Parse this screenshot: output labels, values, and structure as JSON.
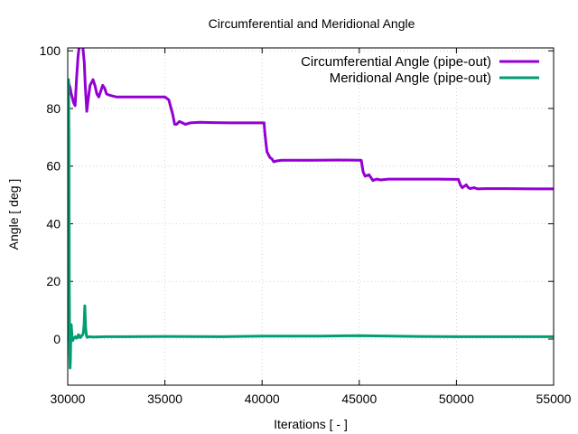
{
  "chart_data": {
    "type": "line",
    "title": "Circumferential and Meridional Angle",
    "xlabel": "Iterations [ - ]",
    "ylabel": "Angle [ deg ]",
    "xlim": [
      30000,
      55000
    ],
    "ylim": [
      -16,
      101
    ],
    "x_ticks": [
      30000,
      35000,
      40000,
      45000,
      50000,
      55000
    ],
    "y_ticks": [
      0,
      20,
      40,
      60,
      80,
      100
    ],
    "grid": true,
    "legend_position": "top-right",
    "series": [
      {
        "name": "Circumferential Angle (pipe-out)",
        "color": "#9400d3",
        "x": [
          30000,
          30040,
          30080,
          30130,
          30180,
          30230,
          30300,
          30380,
          30450,
          30530,
          30620,
          30700,
          30780,
          30850,
          30900,
          30980,
          31050,
          31150,
          31300,
          31400,
          31500,
          31600,
          31700,
          31800,
          31900,
          32000,
          32200,
          32500,
          33000,
          34000,
          35000,
          35200,
          35400,
          35500,
          35600,
          35750,
          35900,
          36050,
          36300,
          36800,
          37500,
          38500,
          39500,
          40100,
          40150,
          40250,
          40400,
          40500,
          40600,
          40750,
          41000,
          41500,
          42500,
          44000,
          45100,
          45200,
          45300,
          45500,
          45700,
          45900,
          46100,
          46500,
          47500,
          49000,
          50100,
          50200,
          50300,
          50500,
          50600,
          50700,
          50900,
          51100,
          51500,
          52500,
          54000,
          55000
        ],
        "y": [
          89,
          89,
          88,
          87,
          85,
          84,
          82,
          81,
          90,
          98,
          103,
          103,
          101,
          96,
          88,
          79,
          83,
          88,
          90,
          88,
          85,
          84,
          86,
          88,
          87,
          85,
          84.5,
          84,
          84,
          84,
          84,
          83,
          78,
          74.5,
          74.5,
          75.5,
          75,
          74.5,
          75,
          75.2,
          75.1,
          75,
          75,
          75,
          71,
          65,
          63,
          62.5,
          61.5,
          61.8,
          62,
          62,
          62,
          62.1,
          62,
          58,
          56.5,
          57,
          55,
          55.5,
          55.2,
          55.5,
          55.5,
          55.5,
          55.4,
          53.5,
          52.5,
          53.5,
          52.6,
          52.2,
          52.5,
          52.1,
          52.2,
          52.2,
          52.1,
          52.1
        ]
      },
      {
        "name": "Meridional Angle (pipe-out)",
        "color": "#009e73",
        "x": [
          30000,
          30020,
          30040,
          30060,
          30080,
          30100,
          30120,
          30140,
          30160,
          30180,
          30200,
          30230,
          30260,
          30300,
          30350,
          30400,
          30450,
          30500,
          30550,
          30600,
          30650,
          30700,
          30750,
          30800,
          30840,
          30880,
          30920,
          30960,
          31000,
          31100,
          31300,
          32000,
          33000,
          35000,
          38000,
          40000,
          43000,
          45000,
          48000,
          50000,
          52000,
          55000
        ],
        "y": [
          0,
          88,
          90,
          70,
          20,
          -5,
          -10,
          -7,
          1,
          5,
          3,
          0.5,
          -0.5,
          0.2,
          0.5,
          0.8,
          0.3,
          0.5,
          1.5,
          1.2,
          0.5,
          1.0,
          1.3,
          2.0,
          5,
          11.5,
          4,
          1.2,
          0.6,
          0.8,
          0.7,
          0.8,
          0.8,
          0.9,
          0.8,
          1.0,
          1.0,
          1.2,
          0.9,
          0.8,
          0.8,
          0.8
        ]
      }
    ]
  }
}
